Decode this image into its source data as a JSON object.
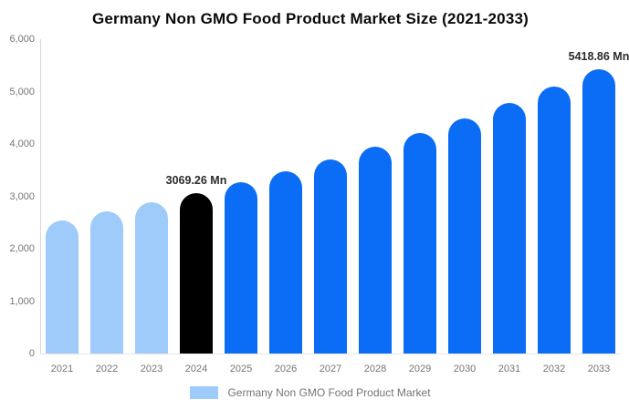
{
  "chart_data": {
    "type": "bar",
    "title": "Germany Non GMO Food Product Market Size (2021-2033)",
    "categories": [
      "2021",
      "2022",
      "2023",
      "2024",
      "2025",
      "2026",
      "2027",
      "2028",
      "2029",
      "2030",
      "2031",
      "2032",
      "2033"
    ],
    "values": [
      2539.2,
      2704.9,
      2881.3,
      3069.26,
      3269.5,
      3482.8,
      3710.0,
      3952.0,
      4209.8,
      4484.4,
      4777.0,
      5088.6,
      5418.86
    ],
    "unit": "Mn",
    "bar_colors": [
      "#9ECBFA",
      "#9ECBFA",
      "#9ECBFA",
      "#000000",
      "#0B6CF6",
      "#0B6CF6",
      "#0B6CF6",
      "#0B6CF6",
      "#0B6CF6",
      "#0B6CF6",
      "#0B6CF6",
      "#0B6CF6",
      "#0B6CF6"
    ],
    "data_labels": [
      {
        "index": 3,
        "text": "3069.26 Mn"
      },
      {
        "index": 12,
        "text": "5418.86 Mn"
      }
    ],
    "xlabel": "",
    "ylabel": "",
    "ylim": [
      0,
      6000
    ],
    "yticks": [
      "6,000",
      "5,000",
      "4,000",
      "3,000",
      "2,000",
      "1,000",
      "0"
    ],
    "grid": false,
    "legend": {
      "position": "bottom",
      "label": "Germany Non GMO Food Product Market",
      "swatch_color": "#9ECBFA"
    },
    "colors": {
      "series_light": "#9ECBFA",
      "series_highlight": "#000000",
      "series_main": "#0B6CF6",
      "axis_line": "#d9d9d9",
      "tick_text": "#757575",
      "title_text": "#0a0a0a",
      "data_label_text": "#2b2b2b"
    }
  }
}
